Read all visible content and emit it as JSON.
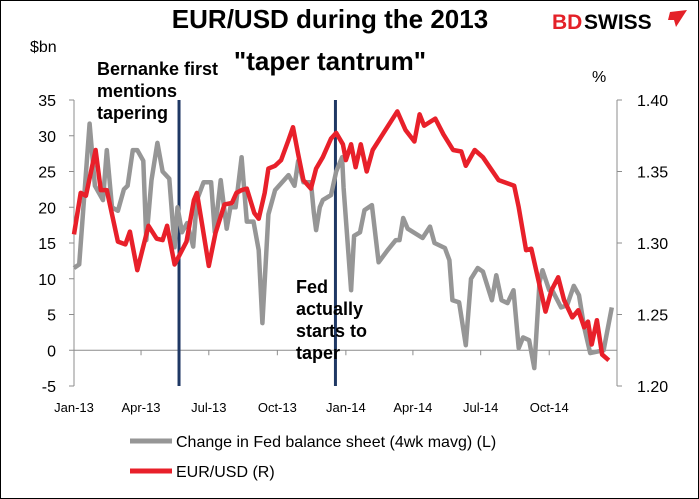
{
  "logo": {
    "text_bd": "BD",
    "text_swiss": "SWISS",
    "colors": {
      "red": "#E42128",
      "black": "#000000"
    }
  },
  "chart_data": {
    "type": "line",
    "title": [
      "EUR/USD during the 2013",
      "\"taper tantrum\""
    ],
    "y_left": {
      "label": "$bn",
      "range": [
        -5,
        35
      ],
      "ticks": [
        "35",
        "30",
        "25",
        "20",
        "15",
        "10",
        "5",
        "0",
        "-5"
      ]
    },
    "y_right": {
      "label": "%",
      "range": [
        1.2,
        1.4
      ],
      "ticks": [
        "1.40",
        "1.35",
        "1.30",
        "1.25",
        "1.20"
      ]
    },
    "x": {
      "range": [
        "2013-01-01",
        "2014-12-31"
      ],
      "tick_labels": [
        "Jan-13",
        "Apr-13",
        "Jul-13",
        "Oct-13",
        "Jan-14",
        "Apr-14",
        "Jul-14",
        "Oct-14"
      ],
      "tick_dates": [
        "2013-01-01",
        "2013-04-01",
        "2013-07-01",
        "2013-10-01",
        "2014-01-01",
        "2014-04-01",
        "2014-07-01",
        "2014-10-01"
      ]
    },
    "grid": false,
    "legend_placement": "bottom",
    "annotations": [
      {
        "date": "2013-05-22",
        "lines": [
          "Bernanke first",
          "mentions",
          "tapering"
        ]
      },
      {
        "date": "2013-12-18",
        "lines": [
          "Fed",
          "actually",
          "starts to",
          "taper"
        ]
      }
    ],
    "annotation_line_color": "#1F3864",
    "series": [
      {
        "name": "Change in Fed balance sheet (4wk mavg) (L)",
        "axis": "left",
        "color": "#969696",
        "points": [
          [
            "2013-01-01",
            11.5
          ],
          [
            "2013-01-08",
            12
          ],
          [
            "2013-01-22",
            31.7
          ],
          [
            "2013-01-29",
            23
          ],
          [
            "2013-02-09",
            21
          ],
          [
            "2013-02-14",
            28
          ],
          [
            "2013-02-21",
            20
          ],
          [
            "2013-03-01",
            19.5
          ],
          [
            "2013-03-09",
            22.5
          ],
          [
            "2013-03-14",
            23
          ],
          [
            "2013-03-21",
            28
          ],
          [
            "2013-03-27",
            28
          ],
          [
            "2013-04-04",
            26.5
          ],
          [
            "2013-04-08",
            15.4
          ],
          [
            "2013-04-15",
            23.8
          ],
          [
            "2013-04-23",
            29
          ],
          [
            "2013-04-30",
            25
          ],
          [
            "2013-05-09",
            24
          ],
          [
            "2013-05-16",
            14.4
          ],
          [
            "2013-05-20",
            20
          ],
          [
            "2013-05-26",
            16.5
          ],
          [
            "2013-06-02",
            17.8
          ],
          [
            "2013-06-10",
            14.5
          ],
          [
            "2013-06-15",
            21
          ],
          [
            "2013-06-24",
            23.5
          ],
          [
            "2013-07-04",
            23.5
          ],
          [
            "2013-07-09",
            16.5
          ],
          [
            "2013-07-17",
            23.8
          ],
          [
            "2013-07-25",
            17
          ],
          [
            "2013-07-30",
            20
          ],
          [
            "2013-08-06",
            20
          ],
          [
            "2013-08-14",
            27
          ],
          [
            "2013-08-21",
            18
          ],
          [
            "2013-08-30",
            18
          ],
          [
            "2013-09-06",
            14
          ],
          [
            "2013-09-11",
            3.8
          ],
          [
            "2013-09-19",
            19
          ],
          [
            "2013-09-28",
            22.4
          ],
          [
            "2013-10-16",
            24.5
          ],
          [
            "2013-10-24",
            23
          ],
          [
            "2013-10-29",
            26.5
          ],
          [
            "2013-11-05",
            23.5
          ],
          [
            "2013-11-15",
            23.5
          ],
          [
            "2013-11-19",
            19.3
          ],
          [
            "2013-11-22",
            16.8
          ],
          [
            "2013-11-27",
            20
          ],
          [
            "2013-12-01",
            21
          ],
          [
            "2013-12-12",
            21.7
          ],
          [
            "2013-12-19",
            25
          ],
          [
            "2013-12-27",
            27
          ],
          [
            "2013-12-29",
            22.7
          ],
          [
            "2014-01-08",
            8.4
          ],
          [
            "2014-01-12",
            16
          ],
          [
            "2014-01-20",
            16.5
          ],
          [
            "2014-01-26",
            19.6
          ],
          [
            "2014-02-05",
            20.3
          ],
          [
            "2014-02-14",
            12.3
          ],
          [
            "2014-02-26",
            14
          ],
          [
            "2014-03-09",
            15.4
          ],
          [
            "2014-03-14",
            15.4
          ],
          [
            "2014-03-19",
            18.5
          ],
          [
            "2014-03-25",
            17
          ],
          [
            "2014-04-14",
            15.7
          ],
          [
            "2014-04-24",
            17.3
          ],
          [
            "2014-04-30",
            15
          ],
          [
            "2014-05-14",
            14.3
          ],
          [
            "2014-05-20",
            12.6
          ],
          [
            "2014-05-24",
            7
          ],
          [
            "2014-06-02",
            6.7
          ],
          [
            "2014-06-11",
            0.7
          ],
          [
            "2014-06-18",
            10
          ],
          [
            "2014-06-27",
            11.5
          ],
          [
            "2014-07-04",
            11
          ],
          [
            "2014-07-16",
            7
          ],
          [
            "2014-07-22",
            10.5
          ],
          [
            "2014-07-29",
            7
          ],
          [
            "2014-08-06",
            6.6
          ],
          [
            "2014-08-14",
            8.4
          ],
          [
            "2014-08-21",
            0.3
          ],
          [
            "2014-08-27",
            1.8
          ],
          [
            "2014-09-04",
            1.4
          ],
          [
            "2014-09-11",
            -2.5
          ],
          [
            "2014-09-18",
            9.5
          ],
          [
            "2014-09-22",
            11.2
          ],
          [
            "2014-10-01",
            8.4
          ],
          [
            "2014-10-05",
            8.4
          ],
          [
            "2014-10-17",
            6
          ],
          [
            "2014-10-25",
            6.3
          ],
          [
            "2014-11-03",
            9
          ],
          [
            "2014-11-10",
            7.7
          ],
          [
            "2014-11-17",
            3.2
          ],
          [
            "2014-11-25",
            -0.4
          ],
          [
            "2014-12-13",
            0
          ],
          [
            "2014-12-24",
            6
          ]
        ]
      },
      {
        "name": "EUR/USD (R)",
        "axis": "right",
        "color": "#E8202A",
        "points": [
          [
            "2013-01-01",
            1.306
          ],
          [
            "2013-01-10",
            1.335
          ],
          [
            "2013-01-17",
            1.333
          ],
          [
            "2013-01-30",
            1.365
          ],
          [
            "2013-02-06",
            1.337
          ],
          [
            "2013-02-14",
            1.337
          ],
          [
            "2013-03-01",
            1.301
          ],
          [
            "2013-03-11",
            1.299
          ],
          [
            "2013-03-17",
            1.308
          ],
          [
            "2013-03-27",
            1.281
          ],
          [
            "2013-04-11",
            1.312
          ],
          [
            "2013-04-22",
            1.303
          ],
          [
            "2013-04-30",
            1.302
          ],
          [
            "2013-05-06",
            1.312
          ],
          [
            "2013-05-16",
            1.285
          ],
          [
            "2013-06-01",
            1.301
          ],
          [
            "2013-06-11",
            1.33
          ],
          [
            "2013-06-15",
            1.335
          ],
          [
            "2013-06-22",
            1.313
          ],
          [
            "2013-07-01",
            1.284
          ],
          [
            "2013-07-10",
            1.307
          ],
          [
            "2013-07-22",
            1.327
          ],
          [
            "2013-08-01",
            1.328
          ],
          [
            "2013-08-07",
            1.335
          ],
          [
            "2013-08-14",
            1.337
          ],
          [
            "2013-08-21",
            1.338
          ],
          [
            "2013-08-31",
            1.321
          ],
          [
            "2013-09-06",
            1.317
          ],
          [
            "2013-09-14",
            1.335
          ],
          [
            "2013-09-19",
            1.352
          ],
          [
            "2013-09-28",
            1.354
          ],
          [
            "2013-10-06",
            1.358
          ],
          [
            "2013-10-16",
            1.372
          ],
          [
            "2013-10-22",
            1.381
          ],
          [
            "2013-10-29",
            1.362
          ],
          [
            "2013-11-05",
            1.344
          ],
          [
            "2013-11-15",
            1.338
          ],
          [
            "2013-11-22",
            1.352
          ],
          [
            "2013-12-01",
            1.36
          ],
          [
            "2013-12-12",
            1.373
          ],
          [
            "2013-12-19",
            1.377
          ],
          [
            "2013-12-28",
            1.369
          ],
          [
            "2014-01-01",
            1.358
          ],
          [
            "2014-01-08",
            1.369
          ],
          [
            "2014-01-14",
            1.353
          ],
          [
            "2014-01-21",
            1.369
          ],
          [
            "2014-01-29",
            1.35
          ],
          [
            "2014-02-06",
            1.365
          ],
          [
            "2014-03-11",
            1.392
          ],
          [
            "2014-03-22",
            1.379
          ],
          [
            "2014-04-03",
            1.371
          ],
          [
            "2014-04-10",
            1.39
          ],
          [
            "2014-04-16",
            1.382
          ],
          [
            "2014-05-01",
            1.387
          ],
          [
            "2014-05-12",
            1.376
          ],
          [
            "2014-05-25",
            1.365
          ],
          [
            "2014-06-05",
            1.364
          ],
          [
            "2014-06-11",
            1.354
          ],
          [
            "2014-06-23",
            1.365
          ],
          [
            "2014-07-04",
            1.36
          ],
          [
            "2014-07-25",
            1.344
          ],
          [
            "2014-08-15",
            1.34
          ],
          [
            "2014-08-21",
            1.325
          ],
          [
            "2014-08-31",
            1.295
          ],
          [
            "2014-09-07",
            1.296
          ],
          [
            "2014-09-26",
            1.252
          ],
          [
            "2014-10-04",
            1.267
          ],
          [
            "2014-10-13",
            1.276
          ],
          [
            "2014-10-21",
            1.26
          ],
          [
            "2014-11-01",
            1.248
          ],
          [
            "2014-11-09",
            1.253
          ],
          [
            "2014-11-17",
            1.241
          ],
          [
            "2014-11-22",
            1.245
          ],
          [
            "2014-11-27",
            1.229
          ],
          [
            "2014-12-04",
            1.246
          ],
          [
            "2014-12-11",
            1.222
          ],
          [
            "2014-12-20",
            1.218
          ]
        ]
      }
    ]
  }
}
